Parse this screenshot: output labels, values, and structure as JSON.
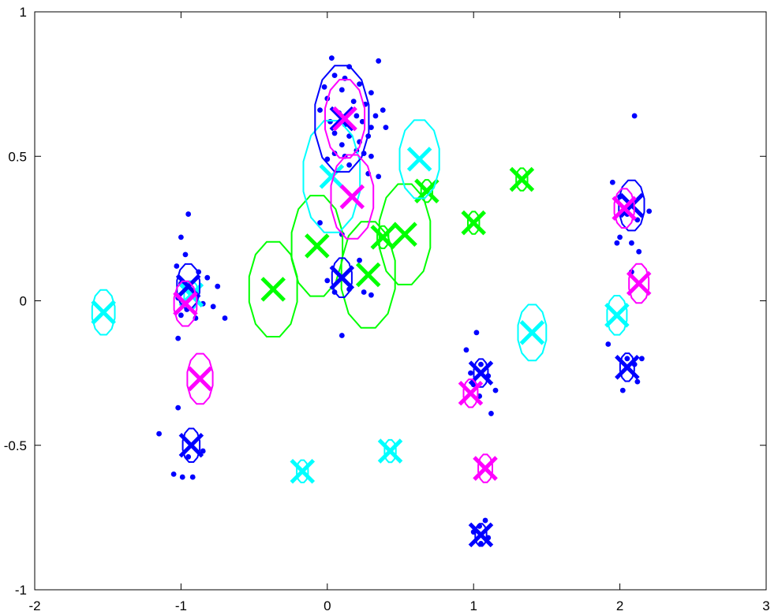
{
  "chart_data": {
    "type": "scatter",
    "title": "",
    "xlabel": "",
    "ylabel": "",
    "xlim": [
      -2,
      3
    ],
    "ylim": [
      -1,
      1
    ],
    "grid": false,
    "x_ticks": [
      -2,
      -1,
      0,
      1,
      2,
      3
    ],
    "y_ticks": [
      -1,
      -0.5,
      0,
      0.5,
      1
    ],
    "x_tick_labels": [
      "-2",
      "-1",
      "0",
      "1",
      "2",
      "3"
    ],
    "y_tick_labels": [
      "-1",
      "-0.5",
      "0",
      "0.5",
      "1"
    ],
    "colors": {
      "blue": "#0000ff",
      "cyan": "#00ffff",
      "magenta": "#ff00ff",
      "green": "#00ff00",
      "axis": "#000000"
    },
    "series": [
      {
        "color": "blue",
        "marker": "dot",
        "points": [
          [
            0.03,
            0.84
          ],
          [
            0.15,
            0.81
          ],
          [
            0.35,
            0.83
          ],
          [
            0.05,
            0.78
          ],
          [
            0.12,
            0.77
          ],
          [
            -0.02,
            0.74
          ],
          [
            0.1,
            0.73
          ],
          [
            0.22,
            0.75
          ],
          [
            0.3,
            0.72
          ],
          [
            0.0,
            0.7
          ],
          [
            0.18,
            0.69
          ],
          [
            0.26,
            0.68
          ],
          [
            -0.05,
            0.66
          ],
          [
            0.08,
            0.65
          ],
          [
            0.2,
            0.64
          ],
          [
            0.33,
            0.64
          ],
          [
            0.38,
            0.66
          ],
          [
            0.02,
            0.62
          ],
          [
            0.12,
            0.61
          ],
          [
            0.24,
            0.62
          ],
          [
            0.3,
            0.6
          ],
          [
            0.4,
            0.6
          ],
          [
            0.05,
            0.58
          ],
          [
            0.15,
            0.57
          ],
          [
            0.22,
            0.55
          ],
          [
            0.28,
            0.57
          ],
          [
            0.1,
            0.54
          ],
          [
            0.2,
            0.52
          ],
          [
            0.25,
            0.51
          ],
          [
            0.05,
            0.51
          ],
          [
            0.0,
            0.49
          ],
          [
            0.12,
            0.5
          ],
          [
            0.3,
            0.5
          ],
          [
            0.15,
            0.47
          ],
          [
            0.28,
            0.44
          ],
          [
            0.35,
            0.43
          ],
          [
            -0.05,
            0.27
          ],
          [
            0.1,
            0.23
          ],
          [
            0.22,
            0.14
          ],
          [
            0.0,
            0.07
          ],
          [
            0.15,
            0.04
          ],
          [
            0.05,
            0.03
          ],
          [
            0.25,
            0.03
          ],
          [
            0.3,
            0.02
          ],
          [
            0.1,
            -0.12
          ],
          [
            -0.95,
            0.3
          ],
          [
            -1.0,
            0.22
          ],
          [
            -0.97,
            0.16
          ],
          [
            -1.03,
            0.12
          ],
          [
            -0.88,
            0.1
          ],
          [
            -0.82,
            0.08
          ],
          [
            -1.0,
            0.06
          ],
          [
            -0.9,
            0.03
          ],
          [
            -0.75,
            0.05
          ],
          [
            -1.02,
            0.01
          ],
          [
            -0.96,
            -0.03
          ],
          [
            -0.85,
            -0.01
          ],
          [
            -0.78,
            -0.02
          ],
          [
            -1.0,
            -0.05
          ],
          [
            -0.9,
            -0.06
          ],
          [
            -0.7,
            -0.06
          ],
          [
            -1.02,
            -0.13
          ],
          [
            -1.02,
            -0.37
          ],
          [
            -1.15,
            -0.46
          ],
          [
            -0.95,
            -0.54
          ],
          [
            -0.85,
            -0.52
          ],
          [
            -1.05,
            -0.6
          ],
          [
            -0.99,
            -0.61
          ],
          [
            -0.92,
            -0.61
          ],
          [
            0.95,
            -0.17
          ],
          [
            1.02,
            -0.11
          ],
          [
            1.05,
            -0.22
          ],
          [
            0.98,
            -0.25
          ],
          [
            1.1,
            -0.26
          ],
          [
            1.15,
            -0.31
          ],
          [
            1.0,
            -0.29
          ],
          [
            1.04,
            -0.33
          ],
          [
            1.12,
            -0.39
          ],
          [
            1.08,
            -0.76
          ],
          [
            1.04,
            -0.78
          ],
          [
            1.0,
            -0.8
          ],
          [
            1.1,
            -0.82
          ],
          [
            1.05,
            -0.84
          ],
          [
            2.1,
            0.64
          ],
          [
            1.95,
            0.41
          ],
          [
            2.0,
            0.36
          ],
          [
            2.05,
            0.3
          ],
          [
            2.12,
            0.28
          ],
          [
            2.2,
            0.31
          ],
          [
            2.0,
            0.22
          ],
          [
            1.98,
            0.2
          ],
          [
            2.08,
            0.2
          ],
          [
            2.13,
            0.17
          ],
          [
            2.08,
            0.1
          ],
          [
            1.92,
            -0.15
          ],
          [
            2.05,
            -0.2
          ],
          [
            2.15,
            -0.2
          ],
          [
            2.1,
            -0.22
          ],
          [
            2.12,
            -0.28
          ],
          [
            2.02,
            -0.31
          ]
        ]
      },
      {
        "color": "blue",
        "marker": "x-circle",
        "points": [
          [
            0.1,
            0.63,
            0.19
          ],
          [
            2.08,
            0.33,
            0.09
          ],
          [
            0.1,
            0.08,
            0.07
          ],
          [
            -0.95,
            0.05,
            0.08
          ],
          [
            1.05,
            -0.25,
            0.05
          ],
          [
            2.05,
            -0.23,
            0.05
          ],
          [
            -0.93,
            -0.5,
            0.06
          ],
          [
            1.05,
            -0.81,
            0.04
          ]
        ]
      },
      {
        "color": "magenta",
        "marker": "x-circle",
        "points": [
          [
            0.12,
            0.63,
            0.14
          ],
          [
            0.17,
            0.36,
            0.15
          ],
          [
            2.03,
            0.32,
            0.07
          ],
          [
            2.13,
            0.06,
            0.07
          ],
          [
            -0.97,
            -0.01,
            0.08
          ],
          [
            -0.87,
            -0.27,
            0.09
          ],
          [
            0.98,
            -0.32,
            0.05
          ],
          [
            1.08,
            -0.58,
            0.05
          ]
        ]
      },
      {
        "color": "cyan",
        "marker": "x-circle",
        "points": [
          [
            0.03,
            0.43,
            0.2
          ],
          [
            0.63,
            0.49,
            0.14
          ],
          [
            -0.93,
            0.02,
            0.05
          ],
          [
            -1.53,
            -0.04,
            0.08
          ],
          [
            1.4,
            -0.11,
            0.1
          ],
          [
            1.98,
            -0.05,
            0.07
          ],
          [
            0.43,
            -0.52,
            0.04
          ],
          [
            -0.17,
            -0.59,
            0.04
          ]
        ]
      },
      {
        "color": "green",
        "marker": "x-circle",
        "points": [
          [
            -0.07,
            0.19,
            0.18
          ],
          [
            0.53,
            0.23,
            0.18
          ],
          [
            0.28,
            0.09,
            0.19
          ],
          [
            -0.37,
            0.04,
            0.17
          ],
          [
            0.68,
            0.38,
            0.04
          ],
          [
            1.33,
            0.42,
            0.04
          ],
          [
            0.38,
            0.22,
            0.04
          ],
          [
            1.0,
            0.27,
            0.04
          ]
        ]
      }
    ]
  }
}
